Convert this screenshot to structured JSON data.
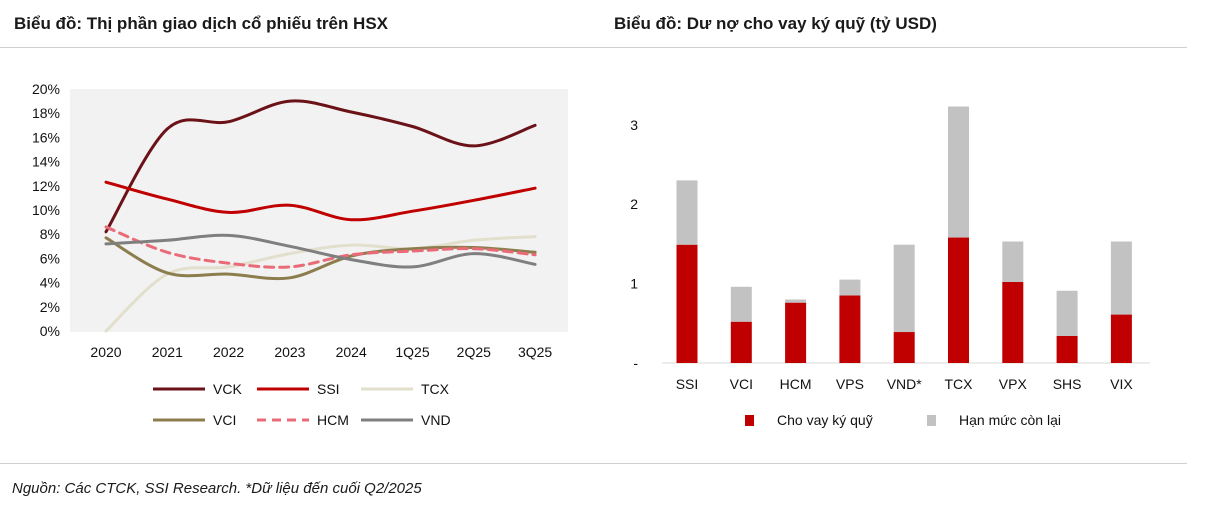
{
  "titles": {
    "left": "Biểu đồ: Thị phần giao dịch cổ phiếu trên HSX",
    "right": "Biểu đồ: Dư nợ cho vay ký quỹ (tỷ USD)"
  },
  "footnote": "Nguồn: Các CTCK, SSI Research. *Dữ liệu đến cuối Q2/2025",
  "chart_data": [
    {
      "type": "line",
      "title": "Biểu đồ: Thị phần giao dịch cổ phiếu trên HSX",
      "categories": [
        "2020",
        "2021",
        "2022",
        "2023",
        "2024",
        "1Q25",
        "2Q25",
        "3Q25"
      ],
      "y_ticks": [
        "0%",
        "2%",
        "4%",
        "6%",
        "8%",
        "10%",
        "12%",
        "14%",
        "16%",
        "18%",
        "20%"
      ],
      "ylim": [
        0,
        20
      ],
      "legend_position": "bottom",
      "series": [
        {
          "name": "VCK",
          "color": "#6b1218",
          "dash": false,
          "values": [
            8.2,
            16.7,
            17.3,
            19.0,
            18.1,
            16.9,
            15.3,
            17.0
          ]
        },
        {
          "name": "SSI",
          "color": "#c00000",
          "dash": false,
          "values": [
            12.3,
            10.9,
            9.8,
            10.4,
            9.2,
            9.9,
            10.8,
            11.8
          ]
        },
        {
          "name": "TCX",
          "color": "#e2dfcc",
          "dash": false,
          "values": [
            0.0,
            4.7,
            5.3,
            6.4,
            7.1,
            6.8,
            7.5,
            7.8
          ]
        },
        {
          "name": "VCI",
          "color": "#8c7d4e",
          "dash": false,
          "values": [
            7.7,
            4.8,
            4.7,
            4.4,
            6.2,
            6.8,
            6.9,
            6.5
          ]
        },
        {
          "name": "HCM",
          "color": "#ea6b78",
          "dash": true,
          "values": [
            8.6,
            6.5,
            5.6,
            5.3,
            6.3,
            6.6,
            6.8,
            6.3
          ]
        },
        {
          "name": "VND",
          "color": "#7f7f7f",
          "dash": false,
          "values": [
            7.2,
            7.5,
            7.9,
            7.0,
            5.9,
            5.3,
            6.4,
            5.5
          ]
        }
      ]
    },
    {
      "type": "bar",
      "stacked": true,
      "title": "Biểu đồ: Dư nợ cho vay ký quỹ (tỷ USD)",
      "categories": [
        "SSI",
        "VCI",
        "HCM",
        "VPS",
        "VND*",
        "TCX",
        "VPX",
        "SHS",
        "VIX"
      ],
      "y_ticks": [
        "-",
        "1",
        "2",
        "3"
      ],
      "ylim": [
        0,
        3.35
      ],
      "legend_position": "bottom",
      "series": [
        {
          "name": "Cho vay ký quỹ",
          "color": "#c00000",
          "values": [
            1.49,
            0.52,
            0.76,
            0.85,
            0.39,
            1.58,
            1.02,
            0.34,
            0.61
          ]
        },
        {
          "name": "Hạn mức còn lại",
          "color": "#c2c2c2",
          "values": [
            0.81,
            0.44,
            0.04,
            0.2,
            1.1,
            1.65,
            0.51,
            0.57,
            0.92
          ]
        }
      ]
    }
  ]
}
